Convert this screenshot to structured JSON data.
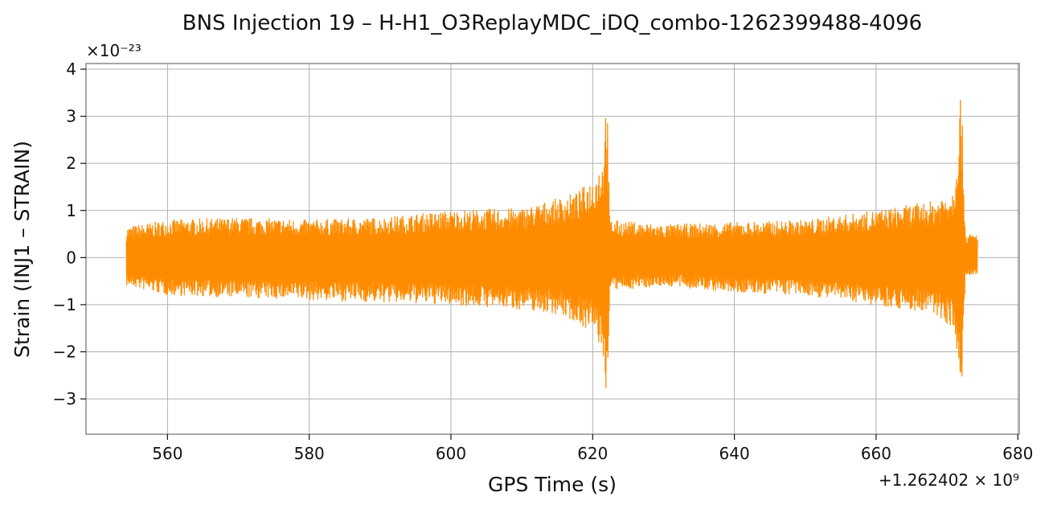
{
  "chart_data": {
    "type": "line",
    "title": "BNS Injection 19 – H-H1_O3ReplayMDC_iDQ_combo-1262399488-4096",
    "xlabel": "GPS Time (s)",
    "ylabel": "Strain (INJ1 – STRAIN)",
    "x_offset_label": "+1.262402 × 10⁹",
    "y_scale_label": "×10⁻²³",
    "xlim": [
      548.5,
      680.2
    ],
    "ylim": [
      -3.75,
      4.12
    ],
    "x_ticks": [
      560,
      580,
      600,
      620,
      640,
      660,
      680
    ],
    "x_tick_labels": [
      "560",
      "580",
      "600",
      "620",
      "640",
      "660",
      "680"
    ],
    "y_ticks": [
      -3,
      -2,
      -1,
      0,
      1,
      2,
      3,
      4
    ],
    "y_tick_labels": [
      "−3",
      "−2",
      "−1",
      "0",
      "1",
      "2",
      "3",
      "4"
    ],
    "grid": true,
    "series": [
      {
        "color": "#ff8c00",
        "x_range": [
          554.2,
          674.3
        ],
        "envelope": [
          {
            "x": 554.2,
            "upper": 0.65,
            "lower": -0.6
          },
          {
            "x": 560,
            "upper": 0.8,
            "lower": -0.8
          },
          {
            "x": 570,
            "upper": 0.85,
            "lower": -0.85
          },
          {
            "x": 580,
            "upper": 0.8,
            "lower": -0.9
          },
          {
            "x": 590,
            "upper": 0.85,
            "lower": -0.95
          },
          {
            "x": 600,
            "upper": 1.0,
            "lower": -1.0
          },
          {
            "x": 610,
            "upper": 1.05,
            "lower": -1.1
          },
          {
            "x": 615,
            "upper": 1.25,
            "lower": -1.2
          },
          {
            "x": 618,
            "upper": 1.4,
            "lower": -1.4
          },
          {
            "x": 620,
            "upper": 1.7,
            "lower": -1.6
          },
          {
            "x": 621.4,
            "upper": 2.1,
            "lower": -2.0
          },
          {
            "x": 622.0,
            "upper": 3.72,
            "lower": -3.38
          },
          {
            "x": 622.4,
            "upper": 0.8,
            "lower": -0.7
          },
          {
            "x": 630,
            "upper": 0.7,
            "lower": -0.6
          },
          {
            "x": 640,
            "upper": 0.75,
            "lower": -0.75
          },
          {
            "x": 650,
            "upper": 0.8,
            "lower": -0.8
          },
          {
            "x": 660,
            "upper": 1.0,
            "lower": -1.0
          },
          {
            "x": 668,
            "upper": 1.2,
            "lower": -1.2
          },
          {
            "x": 671,
            "upper": 1.5,
            "lower": -1.5
          },
          {
            "x": 672.0,
            "upper": 3.75,
            "lower": -3.2
          },
          {
            "x": 672.6,
            "upper": 0.5,
            "lower": -0.4
          },
          {
            "x": 674.3,
            "upper": 0.5,
            "lower": -0.4
          }
        ]
      }
    ]
  }
}
